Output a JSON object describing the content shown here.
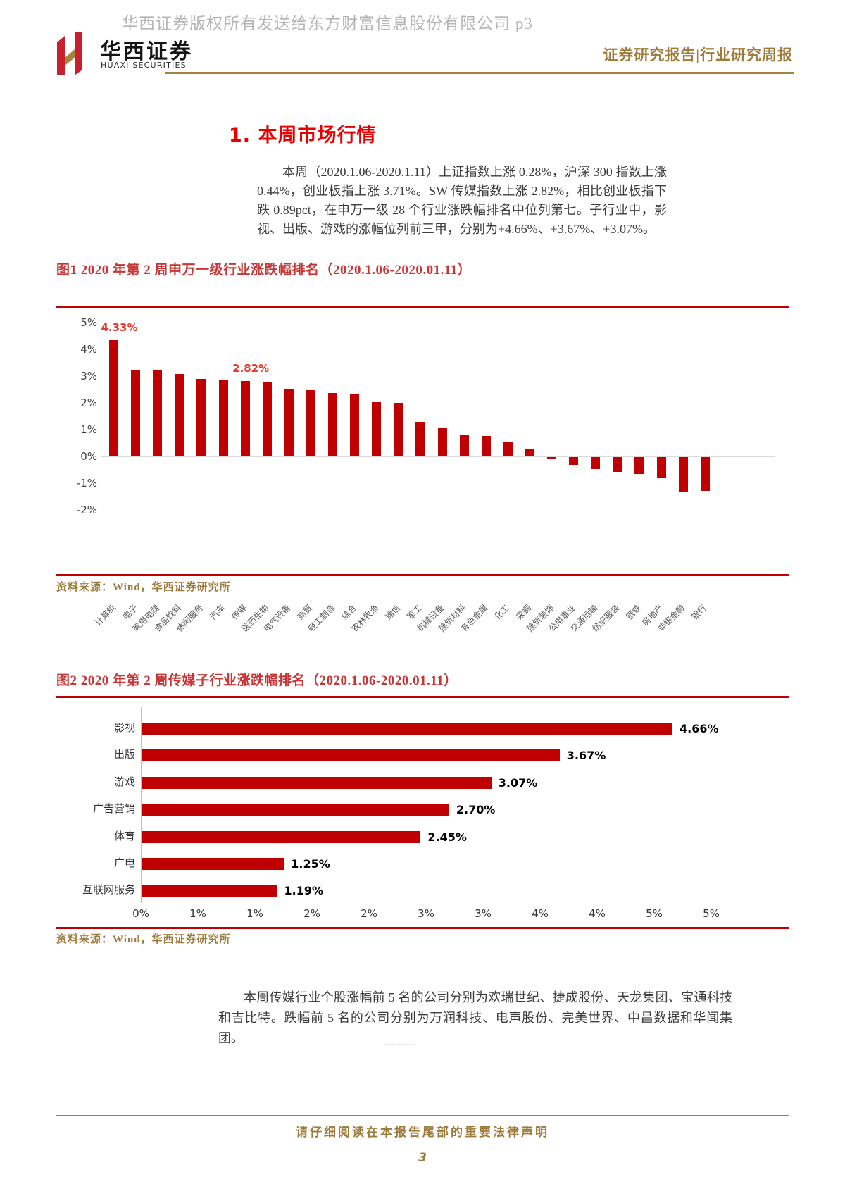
{
  "watermark": "华西证券版权所有发送给东方财富信息股份有限公司 p3",
  "header": {
    "logo_cn": "华西证券",
    "logo_en": "HUAXI SECURITIES",
    "report_type": "证券研究报告|行业研究周报"
  },
  "section": {
    "title": "1. 本周市场行情",
    "paragraph": "本周（2020.1.06-2020.1.11）上证指数上涨 0.28%，沪深 300 指数上涨 0.44%，创业板指上涨 3.71%。SW 传媒指数上涨 2.82%，相比创业板指下跌 0.89pct，在申万一级 28 个行业涨跌幅排名中位列第七。子行业中，影视、出版、游戏的涨幅位列前三甲，分别为+4.66%、+3.67%、+3.07%。"
  },
  "figure1": {
    "caption": "图1  2020 年第 2 周申万一级行业涨跌幅排名（2020.1.06-2020.01.11）",
    "source": "资料来源：Wind，华西证券研究所"
  },
  "figure2": {
    "caption": "图2  2020 年第 2 周传媒子行业涨跌幅排名（2020.1.06-2020.01.11）",
    "source": "资料来源：Wind，华西证券研究所"
  },
  "paragraph2": "本周传媒行业个股涨幅前 5 名的公司分别为欢瑞世纪、捷成股份、天龙集团、宝通科技和吉比特。跌幅前 5 名的公司分别为万润科技、电声股份、完美世界、中昌数据和华闻集团。",
  "dash_artifact": "---------",
  "footer": {
    "legal": "请仔细阅读在本报告尾部的重要法律声明",
    "page": "3"
  },
  "colors": {
    "bar_red": "#C00000",
    "caption_red": "#C73535",
    "title_red": "#E60000",
    "gold": "#9E7B3A",
    "gold_line": "#A5833F",
    "watermark_gray": "#B5B5B5"
  },
  "chart_data": [
    {
      "type": "bar",
      "title": "2020年第2周申万一级行业涨跌幅排名（2020.1.06-2020.01.11）",
      "categories": [
        "计算机",
        "电子",
        "家用电器",
        "食品饮料",
        "休闲服务",
        "汽车",
        "传媒",
        "医药生物",
        "电气设备",
        "商贸",
        "轻工制造",
        "综合",
        "农林牧渔",
        "通信",
        "军工",
        "机械设备",
        "建筑材料",
        "有色金属",
        "化工",
        "采掘",
        "建筑装饰",
        "公用事业",
        "交通运输",
        "纺织服装",
        "钢铁",
        "房地产",
        "非银金融",
        "银行"
      ],
      "values": [
        4.33,
        3.24,
        3.2,
        3.09,
        2.9,
        2.88,
        2.82,
        2.8,
        2.53,
        2.5,
        2.38,
        2.35,
        2.02,
        2.0,
        1.3,
        1.06,
        0.8,
        0.76,
        0.56,
        0.26,
        -0.06,
        -0.3,
        -0.44,
        -0.56,
        -0.62,
        -0.8,
        -1.32,
        -1.27
      ],
      "ylim": [
        -2,
        5
      ],
      "yticks": [
        5,
        4,
        3,
        2,
        1,
        0,
        -1,
        -2
      ],
      "ytick_suffix": "%",
      "data_labels": [
        {
          "index": 0,
          "text": "4.33%"
        },
        {
          "index": 6,
          "text": "2.82%"
        }
      ],
      "grid": "zero-line-only",
      "legend": "none",
      "bar_color": "#C00000"
    },
    {
      "type": "bar",
      "orientation": "horizontal",
      "title": "2020年第2周传媒子行业涨跌幅排名（2020.1.06-2020.01.11）",
      "categories": [
        "影视",
        "出版",
        "游戏",
        "广告营销",
        "体育",
        "广电",
        "互联网服务"
      ],
      "values": [
        4.66,
        3.67,
        3.07,
        2.7,
        2.45,
        1.25,
        1.19
      ],
      "value_labels": [
        "4.66%",
        "3.67%",
        "3.07%",
        "2.70%",
        "2.45%",
        "1.25%",
        "1.19%"
      ],
      "xlim": [
        0,
        5
      ],
      "xticks": [
        "0%",
        "1%",
        "1%",
        "2%",
        "2%",
        "3%",
        "3%",
        "4%",
        "4%",
        "5%",
        "5%"
      ],
      "grid": "off",
      "legend": "none",
      "bar_color": "#C00000"
    }
  ]
}
